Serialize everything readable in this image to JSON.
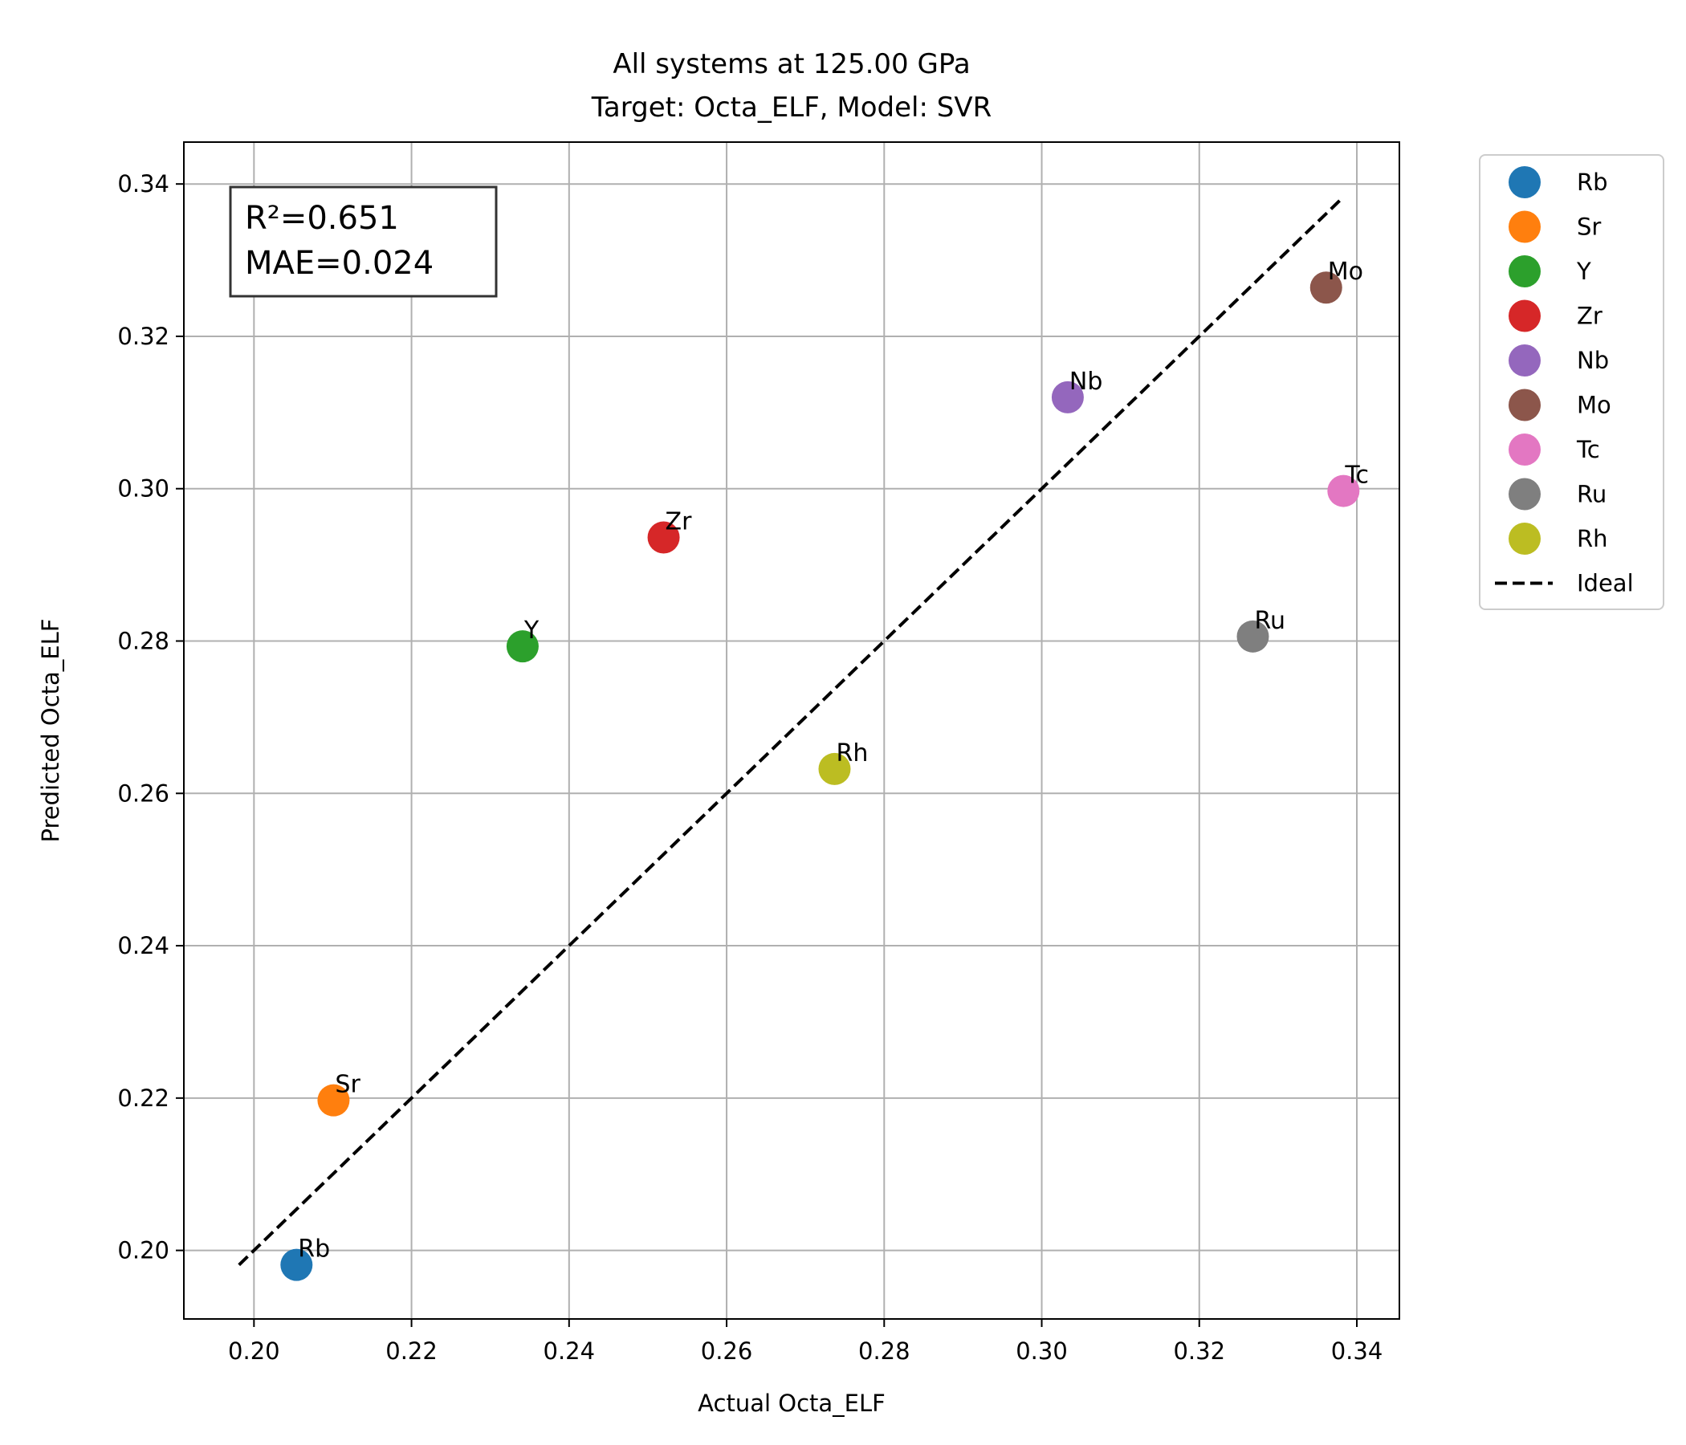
{
  "chart_data": {
    "type": "scatter",
    "title": "All systems at 125.00 GPa",
    "subtitle": "Target: Octa_ELF, Model: SVR",
    "xlabel": "Actual Octa_ELF",
    "ylabel": "Predicted Octa_ELF",
    "xlim": [
      0.1911,
      0.3454
    ],
    "ylim": [
      0.191,
      0.3455
    ],
    "xticks": [
      "0.20",
      "0.22",
      "0.24",
      "0.26",
      "0.28",
      "0.30",
      "0.32",
      "0.34"
    ],
    "yticks": [
      "0.20",
      "0.22",
      "0.24",
      "0.26",
      "0.28",
      "0.30",
      "0.32",
      "0.34"
    ],
    "grid": true,
    "legend_position": "outside-right",
    "stats_box": {
      "r2": "R²=0.651",
      "mae": "MAE=0.024"
    },
    "series": [
      {
        "name": "Rb",
        "x": 0.2054,
        "y": 0.1981,
        "color": "#1f77b4"
      },
      {
        "name": "Sr",
        "x": 0.2101,
        "y": 0.2197,
        "color": "#ff7f0e"
      },
      {
        "name": "Y",
        "x": 0.2341,
        "y": 0.2793,
        "color": "#2ca02c"
      },
      {
        "name": "Zr",
        "x": 0.252,
        "y": 0.2936,
        "color": "#d62728"
      },
      {
        "name": "Nb",
        "x": 0.3033,
        "y": 0.312,
        "color": "#9467bd"
      },
      {
        "name": "Mo",
        "x": 0.3361,
        "y": 0.3264,
        "color": "#8c564b"
      },
      {
        "name": "Tc",
        "x": 0.3383,
        "y": 0.2997,
        "color": "#e377c2"
      },
      {
        "name": "Ru",
        "x": 0.3268,
        "y": 0.2806,
        "color": "#7f7f7f"
      },
      {
        "name": "Rh",
        "x": 0.2737,
        "y": 0.2632,
        "color": "#bcbd22"
      }
    ],
    "ideal_line": {
      "name": "Ideal",
      "from": [
        0.1981,
        0.1981
      ],
      "to": [
        0.3383,
        0.3383
      ],
      "color": "#000000",
      "style": "dashed"
    }
  }
}
